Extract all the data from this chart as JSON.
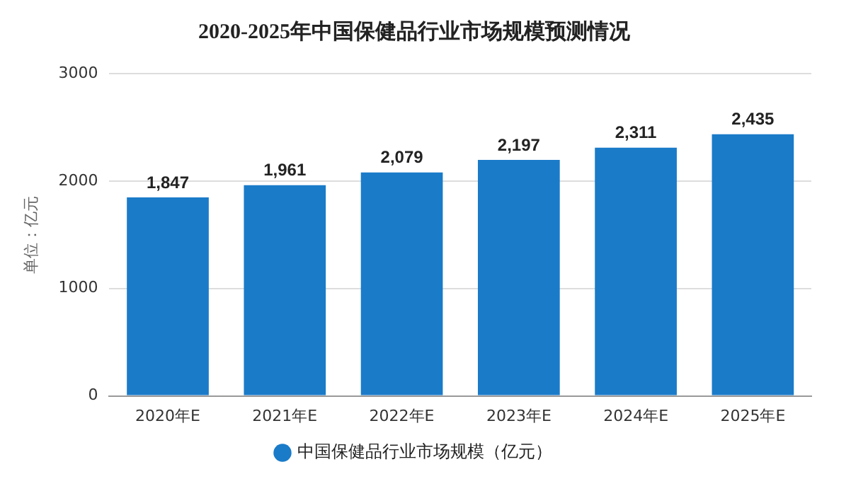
{
  "chart_data": {
    "type": "bar",
    "title": "2020-2025年中国保健品行业市场规模预测情况",
    "ylabel": "单位：亿元",
    "categories": [
      "2020年E",
      "2021年E",
      "2022年E",
      "2023年E",
      "2024年E",
      "2025年E"
    ],
    "series": [
      {
        "name": "中国保健品行业市场规模（亿元）",
        "color": "#1a7bc9",
        "values": [
          1847,
          1961,
          2079,
          2197,
          2311,
          2435
        ],
        "value_labels": [
          "1,847",
          "1,961",
          "2,079",
          "2,197",
          "2,311",
          "2,435"
        ]
      }
    ],
    "ylim": [
      0,
      3000
    ],
    "yticks": [
      0,
      1000,
      2000,
      3000
    ],
    "grid": "y",
    "legend": "bottom"
  }
}
